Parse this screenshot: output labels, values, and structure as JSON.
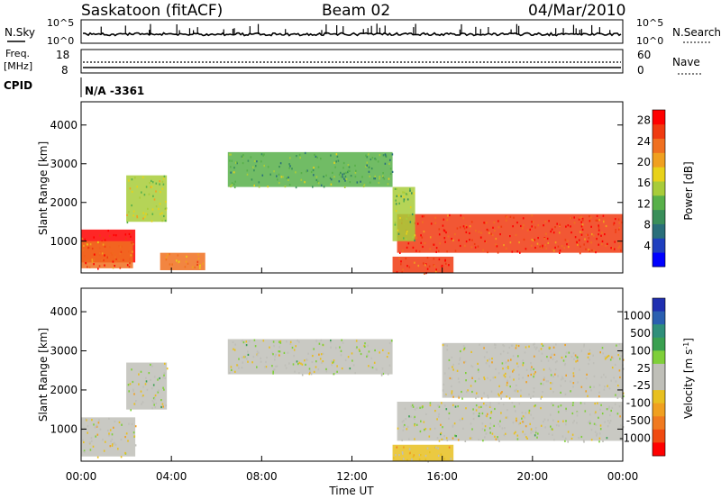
{
  "header": {
    "station": "Saskatoon (fitACF)",
    "beam": "Beam 02",
    "date": "04/Mar/2010"
  },
  "noise_panel": {
    "left_label": "N.Sky",
    "right_label": "N.Search",
    "left_ticks": [
      "10^5",
      "10^0"
    ],
    "right_ticks": [
      "10^5",
      "10^0"
    ]
  },
  "freq_panel": {
    "left_label_1": "Freq.",
    "left_label_2": "[MHz]",
    "left_ticks": [
      "18",
      "8"
    ],
    "right_label": "Nave",
    "right_ticks": [
      "60",
      "0"
    ]
  },
  "cpid": {
    "label": "CPID",
    "value": "N/A -3361"
  },
  "power_panel": {
    "ylabel": "Slant Range [km]",
    "yticks": [
      "4000",
      "3000",
      "2000",
      "1000"
    ],
    "colorbar_label": "Power [dB]",
    "colorbar_ticks": [
      "28",
      "24",
      "20",
      "16",
      "12",
      "8",
      "4"
    ],
    "colorbar_colors": [
      "#0000ff",
      "#1f3fbf",
      "#2a6f7a",
      "#3a8f5a",
      "#58b04a",
      "#a8cc3a",
      "#e8d21a",
      "#f0a020",
      "#f07020",
      "#f03a10",
      "#ff0000"
    ]
  },
  "velocity_panel": {
    "ylabel": "Slant Range [km]",
    "yticks": [
      "4000",
      "3000",
      "2000",
      "1000"
    ],
    "colorbar_label": "Velocity [m s",
    "colorbar_label_sup": "-1",
    "colorbar_label_end": "]",
    "colorbar_ticks": [
      "1000",
      "500",
      "100",
      "25",
      "-25",
      "-100",
      "-500",
      "-1000"
    ],
    "colorbar_colors": [
      "#1f2fb0",
      "#2a5fb0",
      "#2f8f7a",
      "#3aa050",
      "#7fcf3a",
      "#bfbfb8",
      "#bfbfb8",
      "#e8c020",
      "#f0a020",
      "#f07a20",
      "#f04a10",
      "#ff0000"
    ]
  },
  "xaxis": {
    "label": "Time UT",
    "ticks": [
      "00:00",
      "04:00",
      "08:00",
      "12:00",
      "16:00",
      "20:00",
      "00:00"
    ]
  },
  "chart_data": {
    "type": "heatmap",
    "title": "Saskatoon (fitACF) Beam 02 04/Mar/2010",
    "xlabel": "Time UT",
    "ylabel": "Slant Range [km]",
    "x_range_hours": [
      0,
      24
    ],
    "ylim_km": [
      180,
      4600
    ],
    "grid": false,
    "panels": [
      {
        "name": "Power",
        "unit": "dB",
        "colorbar_range": [
          0,
          30
        ],
        "echo_regions": [
          {
            "t_start": 0.0,
            "t_end": 2.4,
            "r_low": 450,
            "r_high": 1300,
            "value_db": 28
          },
          {
            "t_start": 0.0,
            "t_end": 2.3,
            "r_low": 300,
            "r_high": 1000,
            "value_db": 24
          },
          {
            "t_start": 2.0,
            "t_end": 3.8,
            "r_low": 1500,
            "r_high": 2700,
            "value_db": 16
          },
          {
            "t_start": 3.5,
            "t_end": 5.5,
            "r_low": 250,
            "r_high": 700,
            "value_db": 22
          },
          {
            "t_start": 6.5,
            "t_end": 13.8,
            "r_low": 2400,
            "r_high": 3300,
            "value_db": 12
          },
          {
            "t_start": 13.8,
            "t_end": 16.5,
            "r_low": 180,
            "r_high": 600,
            "value_db": 26
          },
          {
            "t_start": 14.0,
            "t_end": 24.0,
            "r_low": 700,
            "r_high": 1700,
            "value_db": 26
          },
          {
            "t_start": 13.8,
            "t_end": 14.8,
            "r_low": 1000,
            "r_high": 2400,
            "value_db": 14
          }
        ]
      },
      {
        "name": "Velocity",
        "unit": "m s^-1",
        "colorbar_range": [
          -1000,
          1000
        ],
        "echo_regions": [
          {
            "t_start": 0.0,
            "t_end": 2.4,
            "r_low": 300,
            "r_high": 1300,
            "value_ms": -80
          },
          {
            "t_start": 2.0,
            "t_end": 3.8,
            "r_low": 1500,
            "r_high": 2700,
            "value_ms": 0
          },
          {
            "t_start": 6.5,
            "t_end": 13.8,
            "r_low": 2400,
            "r_high": 3300,
            "value_ms": 0
          },
          {
            "t_start": 14.0,
            "t_end": 24.0,
            "r_low": 700,
            "r_high": 1700,
            "value_ms": 0
          },
          {
            "t_start": 16.0,
            "t_end": 24.0,
            "r_low": 1800,
            "r_high": 3200,
            "value_ms": -100
          },
          {
            "t_start": 13.8,
            "t_end": 16.5,
            "r_low": 180,
            "r_high": 600,
            "value_ms": -200
          }
        ]
      }
    ]
  }
}
